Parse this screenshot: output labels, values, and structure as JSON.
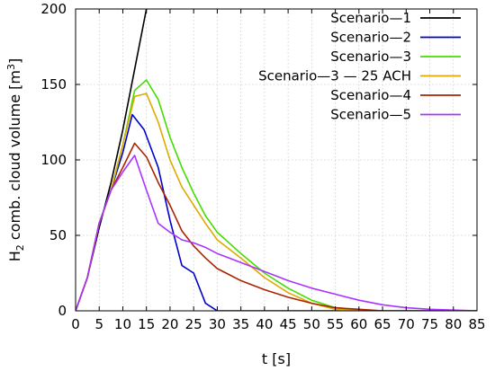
{
  "chart_data": {
    "type": "line",
    "xlabel": "t [s]",
    "ylabel": {
      "prefix": "H",
      "sub": "2",
      "middle": " comb. cloud volume [m",
      "sup": "3",
      "suffix": "]"
    },
    "xlim": [
      0,
      85
    ],
    "ylim": [
      0,
      200
    ],
    "xticks": [
      0,
      5,
      10,
      15,
      20,
      25,
      30,
      35,
      40,
      45,
      50,
      55,
      60,
      65,
      70,
      75,
      80,
      85
    ],
    "yticks": [
      0,
      50,
      100,
      150,
      200
    ],
    "grid": true,
    "legend_position": "top-right",
    "series": [
      {
        "name": "Scenario—1",
        "color": "#000000",
        "x": [
          0,
          2.5,
          5,
          7.5,
          10,
          12.5,
          15
        ],
        "y": [
          0,
          22,
          55,
          85,
          120,
          160,
          200
        ]
      },
      {
        "name": "Scenario—2",
        "color": "#0000cc",
        "x": [
          0,
          2.5,
          5,
          7.5,
          10,
          12,
          14.5,
          17.5,
          20,
          22.5,
          25,
          27.5,
          30,
          85
        ],
        "y": [
          0,
          22,
          58,
          80,
          105,
          130,
          120,
          95,
          60,
          30,
          25,
          5,
          0,
          0
        ]
      },
      {
        "name": "Scenario—3",
        "color": "#44dd00",
        "x": [
          0,
          2.5,
          5,
          7.5,
          10,
          12.5,
          15,
          17.5,
          20,
          22.5,
          25,
          27.5,
          30,
          35,
          40,
          45,
          50,
          55,
          60,
          65,
          85
        ],
        "y": [
          0,
          22,
          58,
          80,
          110,
          146,
          153,
          140,
          115,
          95,
          78,
          63,
          52,
          38,
          25,
          15,
          7,
          2,
          0.5,
          0,
          0
        ]
      },
      {
        "name": "Scenario—3 — 25 ACH",
        "color": "#ddaa00",
        "x": [
          0,
          2.5,
          5,
          7.5,
          10,
          12.5,
          15,
          17.5,
          20,
          22.5,
          25,
          27.5,
          30,
          35,
          40,
          45,
          50,
          55,
          60,
          65,
          85
        ],
        "y": [
          0,
          22,
          58,
          80,
          110,
          142,
          144,
          125,
          100,
          82,
          70,
          58,
          47,
          35,
          22,
          12,
          5,
          1,
          0.2,
          0,
          0
        ]
      },
      {
        "name": "Scenario—4",
        "color": "#aa2200",
        "x": [
          0,
          2.5,
          5,
          7.5,
          10,
          12.5,
          15,
          17.5,
          20,
          22.5,
          25,
          27.5,
          30,
          35,
          40,
          45,
          50,
          55,
          60,
          65,
          85
        ],
        "y": [
          0,
          22,
          58,
          80,
          95,
          111,
          102,
          85,
          70,
          53,
          43,
          35,
          28,
          20,
          14,
          9,
          5,
          2,
          1,
          0,
          0
        ]
      },
      {
        "name": "Scenario—5",
        "color": "#aa33ff",
        "x": [
          0,
          2.5,
          5,
          7.5,
          10,
          12.5,
          15,
          17.5,
          20,
          22.5,
          25,
          27.5,
          30,
          35,
          40,
          45,
          50,
          55,
          60,
          65,
          70,
          75,
          80,
          85
        ],
        "y": [
          0,
          22,
          58,
          80,
          92,
          103,
          80,
          58,
          52,
          47,
          45,
          42,
          38,
          32,
          26,
          20,
          15,
          11,
          7,
          4,
          2,
          1,
          0.5,
          0
        ]
      }
    ]
  }
}
